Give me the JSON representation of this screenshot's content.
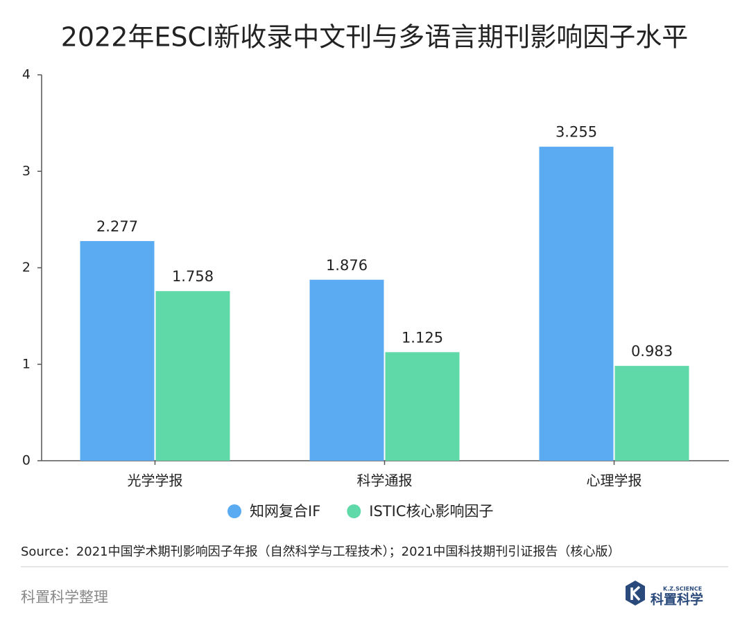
{
  "chart_data": {
    "type": "bar",
    "title": "2022年ESCI新收录中文刊与多语言期刊影响因子水平",
    "categories": [
      "光学学报",
      "科学通报",
      "心理学报"
    ],
    "series": [
      {
        "name": "知网复合IF",
        "color": "#5aabf1",
        "values": [
          2.277,
          1.876,
          3.255
        ]
      },
      {
        "name": "ISTIC核心影响因子",
        "color": "#60d9a8",
        "values": [
          1.758,
          1.125,
          0.983
        ]
      }
    ],
    "ylim": [
      0,
      4
    ],
    "yticks": [
      0,
      1,
      2,
      3,
      4
    ]
  },
  "source": "Source：2021中国学术期刊影响因子年报（自然科学与工程技术）；2021中国科技期刊引证报告（核心版）",
  "footer": "科置科学整理",
  "logo": {
    "small": "K.Z.SCIENCE",
    "name": "科置科学"
  }
}
